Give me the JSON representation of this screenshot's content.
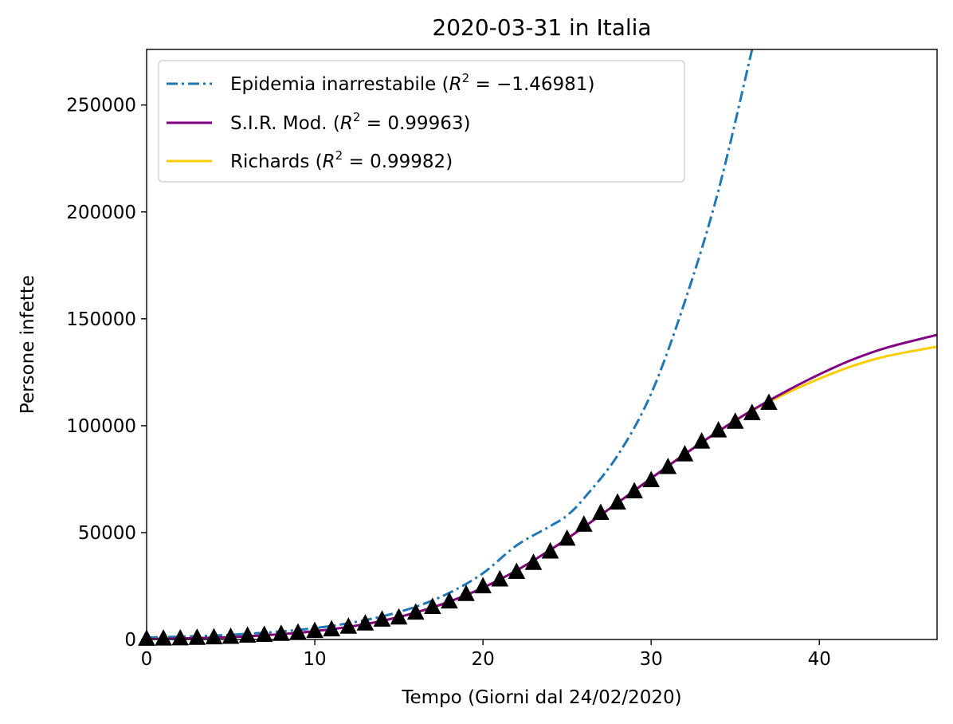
{
  "chart_data": {
    "type": "line",
    "title": "2020-03-31 in Italia",
    "xlabel": "Tempo (Giorni dal 24/02/2020)",
    "ylabel": "Persone infette",
    "xlim": [
      0,
      47
    ],
    "ylim": [
      0,
      276000
    ],
    "x_ticks": [
      0,
      10,
      20,
      30,
      40
    ],
    "y_ticks": [
      0,
      50000,
      100000,
      150000,
      200000,
      250000
    ],
    "grid": false,
    "legend_position": "top-left",
    "series": [
      {
        "name": "Epidemia inarrestabile",
        "r2": "−1.46981",
        "style": "dash-dot",
        "color": "#1f77b4",
        "x": [
          0,
          2,
          4,
          6,
          8,
          10,
          12,
          14,
          16,
          18,
          20,
          22,
          24,
          25,
          26,
          28,
          30,
          32,
          34,
          36
        ],
        "y": [
          900,
          1300,
          1850,
          2650,
          3750,
          5300,
          7600,
          10800,
          15300,
          21800,
          31000,
          44000,
          53000,
          58000,
          66000,
          86000,
          115000,
          158000,
          210000,
          276000
        ]
      },
      {
        "name": "S.I.R. Mod.",
        "r2": "0.99963",
        "style": "solid",
        "color": "#800080",
        "x": [
          0,
          2,
          4,
          6,
          8,
          10,
          12,
          14,
          16,
          18,
          20,
          22,
          24,
          26,
          28,
          30,
          32,
          34,
          36,
          38,
          40,
          42,
          44,
          47
        ],
        "y": [
          200,
          450,
          850,
          1500,
          2500,
          3900,
          5900,
          8700,
          12600,
          17700,
          24200,
          32300,
          41900,
          52600,
          63900,
          75400,
          86700,
          97400,
          107200,
          116000,
          124000,
          131000,
          136500,
          142500
        ]
      },
      {
        "name": "Richards",
        "r2": "0.99982",
        "style": "solid",
        "color": "#ffcc00",
        "x": [
          0,
          2,
          4,
          6,
          8,
          10,
          12,
          14,
          16,
          18,
          20,
          22,
          24,
          26,
          28,
          30,
          32,
          34,
          36,
          38,
          40,
          42,
          44,
          47
        ],
        "y": [
          200,
          450,
          850,
          1500,
          2500,
          3900,
          5900,
          8700,
          12600,
          17700,
          24200,
          32300,
          41900,
          52600,
          63900,
          75400,
          86700,
          97400,
          107000,
          115000,
          122000,
          128000,
          132500,
          137000
        ]
      }
    ],
    "observed": {
      "marker": "triangle",
      "color": "#000000",
      "x": [
        0,
        1,
        2,
        3,
        4,
        5,
        6,
        7,
        8,
        9,
        10,
        11,
        12,
        13,
        14,
        15,
        16,
        17,
        18,
        19,
        20,
        21,
        22,
        23,
        24,
        25,
        26,
        27,
        28,
        29,
        30,
        31,
        32,
        33,
        34,
        35,
        36,
        37
      ],
      "y": [
        229,
        322,
        400,
        650,
        888,
        1128,
        1694,
        2036,
        2502,
        3089,
        3858,
        4636,
        5883,
        7375,
        9172,
        10149,
        12462,
        15113,
        17660,
        21157,
        24747,
        27980,
        31506,
        35713,
        41035,
        47021,
        53578,
        59138,
        63927,
        69176,
        74386,
        80539,
        86498,
        92472,
        97689,
        101739,
        105792,
        110574
      ]
    }
  }
}
